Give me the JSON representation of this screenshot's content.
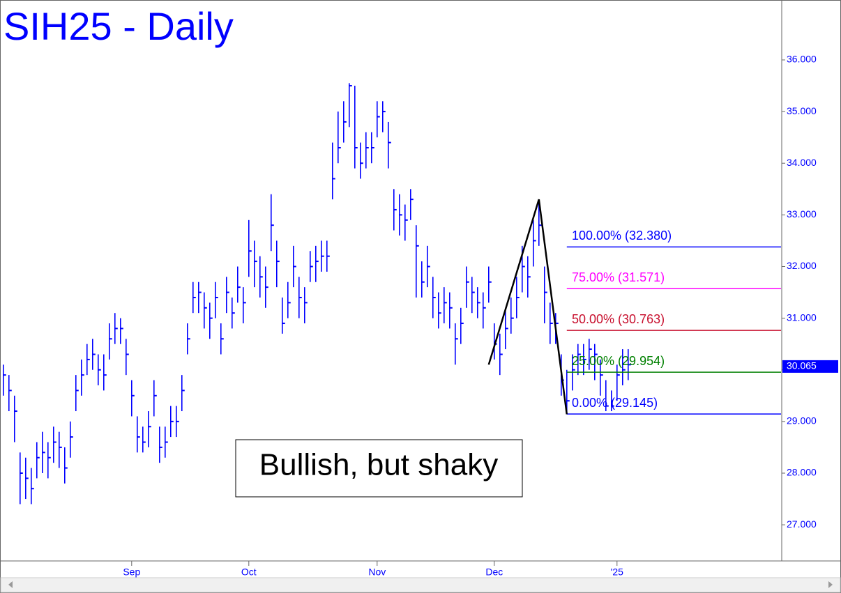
{
  "chart_data": {
    "type": "ohlc",
    "title": "SIH25 - Daily",
    "annotation": "Bullish, but shaky",
    "color": "#0000ff",
    "high": [
      30.1,
      29.9,
      29.5,
      28.4,
      28.3,
      28.1,
      28.6,
      28.8,
      28.6,
      28.9,
      28.8,
      28.5,
      29.0,
      29.9,
      30.2,
      30.5,
      30.6,
      30.3,
      30.3,
      30.9,
      31.1,
      31.0,
      30.6,
      29.8,
      29.1,
      28.9,
      29.2,
      29.8,
      28.9,
      28.9,
      29.3,
      29.3,
      29.9,
      30.9,
      31.7,
      31.7,
      31.5,
      31.3,
      31.7,
      30.9,
      31.8,
      31.4,
      32.0,
      31.6,
      32.9,
      32.5,
      32.2,
      32.0,
      33.4,
      32.5,
      31.4,
      31.7,
      32.4,
      31.8,
      31.6,
      32.3,
      32.4,
      32.5,
      32.5,
      34.4,
      35.0,
      35.2,
      35.55,
      35.5,
      34.4,
      34.6,
      34.6,
      35.2,
      35.2,
      34.8,
      33.5,
      33.4,
      33.2,
      33.5,
      32.8,
      32.1,
      32.4,
      31.8,
      31.5,
      31.6,
      31.5,
      30.9,
      31.2,
      32.0,
      31.8,
      31.6,
      31.5,
      32.0,
      30.9,
      30.7,
      31.2,
      31.4,
      31.8,
      32.4,
      32.2,
      32.9,
      33.3,
      32.0,
      31.3,
      31.1,
      30.3,
      30.0,
      30.3,
      30.5,
      30.5,
      30.6,
      30.5,
      30.2,
      29.8,
      29.6,
      30.1,
      30.4,
      30.4
    ],
    "low": [
      29.5,
      29.2,
      28.6,
      27.4,
      27.5,
      27.4,
      27.9,
      28.0,
      27.9,
      28.2,
      28.1,
      27.8,
      28.3,
      29.2,
      29.5,
      29.9,
      30.0,
      29.7,
      29.6,
      30.2,
      30.5,
      30.5,
      29.9,
      29.1,
      28.4,
      28.4,
      28.5,
      29.1,
      28.2,
      28.3,
      28.7,
      28.7,
      29.2,
      30.3,
      31.1,
      31.1,
      30.8,
      30.6,
      31.0,
      30.3,
      31.1,
      30.8,
      31.3,
      30.9,
      31.8,
      31.6,
      31.4,
      31.2,
      32.3,
      31.6,
      30.7,
      31.0,
      31.6,
      31.0,
      30.9,
      31.7,
      31.7,
      31.9,
      31.9,
      33.3,
      34.0,
      34.4,
      34.7,
      33.9,
      33.7,
      33.9,
      34.0,
      34.5,
      34.6,
      33.9,
      32.7,
      32.6,
      32.5,
      32.9,
      31.4,
      31.4,
      31.6,
      31.0,
      30.8,
      30.9,
      30.8,
      30.1,
      30.5,
      31.2,
      31.1,
      31.0,
      30.8,
      31.3,
      30.2,
      29.9,
      30.4,
      30.7,
      31.0,
      31.5,
      31.4,
      32.0,
      32.4,
      30.9,
      30.5,
      30.5,
      29.5,
      29.14,
      29.6,
      29.9,
      29.9,
      30.0,
      29.8,
      29.5,
      29.2,
      29.2,
      29.4,
      29.7,
      29.8
    ],
    "close": [
      29.9,
      29.6,
      29.2,
      28.0,
      27.9,
      27.7,
      28.3,
      28.4,
      28.3,
      28.6,
      28.5,
      28.1,
      28.7,
      29.6,
      29.9,
      30.2,
      30.3,
      30.0,
      29.9,
      30.6,
      30.8,
      30.8,
      30.3,
      29.5,
      28.7,
      28.6,
      28.9,
      29.5,
      28.5,
      28.6,
      29.0,
      29.0,
      29.6,
      30.6,
      31.4,
      31.5,
      31.2,
      31.0,
      31.4,
      30.6,
      31.5,
      31.1,
      31.6,
      31.3,
      32.3,
      32.1,
      31.8,
      31.6,
      32.8,
      32.1,
      30.9,
      31.3,
      32.0,
      31.4,
      31.3,
      32.0,
      32.1,
      32.2,
      32.2,
      33.7,
      34.3,
      34.8,
      35.5,
      34.3,
      34.0,
      34.3,
      34.3,
      34.9,
      35.0,
      34.4,
      33.1,
      33.0,
      32.9,
      33.3,
      32.4,
      31.7,
      32.0,
      31.4,
      31.1,
      31.3,
      31.2,
      30.6,
      30.9,
      31.7,
      31.5,
      31.3,
      31.2,
      31.7,
      30.5,
      30.3,
      30.8,
      31.0,
      31.4,
      32.0,
      31.8,
      32.5,
      32.8,
      31.5,
      30.9,
      30.9,
      29.8,
      29.4,
      30.0,
      30.3,
      30.2,
      30.4,
      30.3,
      29.9,
      29.3,
      29.3,
      29.9,
      30.0,
      30.1
    ],
    "pattern": {
      "color": "#000000",
      "x": [
        87,
        96,
        101
      ],
      "y": [
        30.1,
        33.3,
        29.14
      ]
    },
    "levels": [
      {
        "label": "100.00% (32.380)",
        "value": 32.38,
        "color": "#0000ff"
      },
      {
        "label": "75.00% (31.571)",
        "value": 31.571,
        "color": "#ff00ff"
      },
      {
        "label": "50.00% (30.763)",
        "value": 30.763,
        "color": "#c8102e"
      },
      {
        "label": "25.00% (29.954)",
        "value": 29.954,
        "color": "#008000"
      },
      {
        "label": "0.00% (29.145)",
        "value": 29.145,
        "color": "#0000ff"
      }
    ],
    "levels_start": 101,
    "last_price": 30.065,
    "xlim": [
      -0.6,
      139.4
    ],
    "xticks": [
      {
        "value": 23,
        "label": "Sep"
      },
      {
        "value": 44,
        "label": "Oct"
      },
      {
        "value": 67,
        "label": "Nov"
      },
      {
        "value": 88,
        "label": "Dec"
      },
      {
        "value": 110,
        "label": "'25"
      }
    ],
    "ylim": [
      26.3,
      37.16
    ],
    "yticks": [
      {
        "value": 27,
        "label": "27.000"
      },
      {
        "value": 28,
        "label": "28.000"
      },
      {
        "value": 29,
        "label": "29.000"
      },
      {
        "value": 30,
        "label": "30.000"
      },
      {
        "value": 31,
        "label": "31.000"
      },
      {
        "value": 32,
        "label": "32.000"
      },
      {
        "value": 33,
        "label": "33.000"
      },
      {
        "value": 34,
        "label": "34.000"
      },
      {
        "value": 35,
        "label": "35.000"
      },
      {
        "value": 36,
        "label": "36.000"
      }
    ]
  }
}
